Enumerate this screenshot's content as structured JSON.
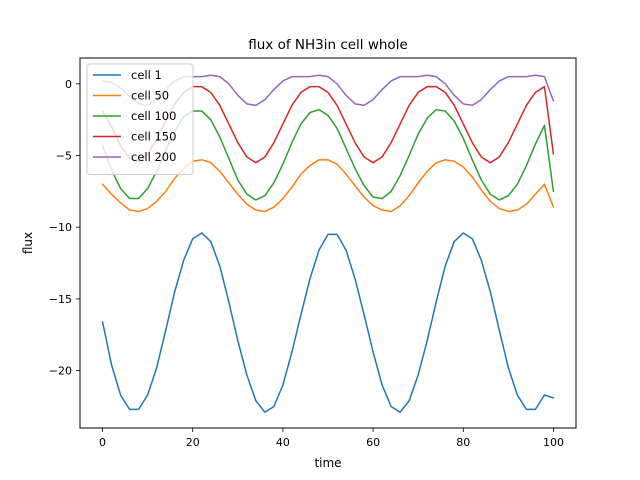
{
  "chart_data": {
    "type": "line",
    "title": "flux of NH3in cell whole",
    "xlabel": "time",
    "ylabel": "flux",
    "xlim": [
      -5,
      105
    ],
    "ylim": [
      -24,
      1.8
    ],
    "xticks": [
      0,
      20,
      40,
      60,
      80,
      100
    ],
    "yticks": [
      0,
      -5,
      -10,
      -15,
      -20
    ],
    "ytick_labels": [
      "0",
      "−5",
      "−10",
      "−15",
      "−20"
    ],
    "grid": false,
    "legend_position": "top-left",
    "x": [
      0,
      2,
      4,
      6,
      8,
      10,
      12,
      14,
      16,
      18,
      20,
      22,
      24,
      26,
      28,
      30,
      32,
      34,
      36,
      38,
      40,
      42,
      44,
      46,
      48,
      50,
      52,
      54,
      56,
      58,
      60,
      62,
      64,
      66,
      68,
      70,
      72,
      74,
      76,
      78,
      80,
      82,
      84,
      86,
      88,
      90,
      92,
      94,
      96,
      98,
      100
    ],
    "series": [
      {
        "name": "cell 1",
        "color": "#1f77b4",
        "values": [
          -16.6,
          -19.6,
          -21.7,
          -22.7,
          -22.7,
          -21.7,
          -19.8,
          -17.2,
          -14.5,
          -12.3,
          -10.8,
          -10.4,
          -11.0,
          -12.7,
          -15.2,
          -17.9,
          -20.3,
          -22.1,
          -22.9,
          -22.5,
          -21.0,
          -18.7,
          -16.1,
          -13.6,
          -11.6,
          -10.5,
          -10.5,
          -11.6,
          -13.6,
          -16.1,
          -18.7,
          -21.0,
          -22.5,
          -22.9,
          -22.1,
          -20.3,
          -17.9,
          -15.2,
          -12.7,
          -11.0,
          -10.4,
          -10.8,
          -12.3,
          -14.5,
          -17.2,
          -19.8,
          -21.7,
          -22.7,
          -22.7,
          -21.7,
          -21.9
        ]
      },
      {
        "name": "cell 50",
        "color": "#ff7f0e",
        "values": [
          -7.0,
          -7.7,
          -8.3,
          -8.8,
          -8.9,
          -8.7,
          -8.2,
          -7.5,
          -6.6,
          -5.9,
          -5.4,
          -5.3,
          -5.5,
          -6.1,
          -6.9,
          -7.7,
          -8.4,
          -8.8,
          -8.9,
          -8.6,
          -8.0,
          -7.2,
          -6.3,
          -5.7,
          -5.3,
          -5.3,
          -5.6,
          -6.3,
          -7.1,
          -7.9,
          -8.5,
          -8.8,
          -8.9,
          -8.5,
          -7.8,
          -6.9,
          -6.1,
          -5.5,
          -5.3,
          -5.4,
          -5.8,
          -6.5,
          -7.4,
          -8.2,
          -8.7,
          -8.9,
          -8.8,
          -8.4,
          -7.7,
          -7.0,
          -8.6
        ]
      },
      {
        "name": "cell 100",
        "color": "#2ca02c",
        "values": [
          -4.3,
          -6.0,
          -7.3,
          -8.0,
          -8.0,
          -7.3,
          -6.1,
          -4.6,
          -3.3,
          -2.3,
          -1.9,
          -1.9,
          -2.5,
          -3.7,
          -5.2,
          -6.7,
          -7.7,
          -8.1,
          -7.8,
          -6.9,
          -5.6,
          -4.1,
          -2.8,
          -2.0,
          -1.8,
          -2.2,
          -3.1,
          -4.5,
          -5.9,
          -7.1,
          -7.9,
          -8.0,
          -7.5,
          -6.4,
          -5.0,
          -3.5,
          -2.4,
          -1.8,
          -1.9,
          -2.6,
          -3.8,
          -5.3,
          -6.7,
          -7.7,
          -8.1,
          -7.8,
          -7.0,
          -5.7,
          -4.2,
          -2.9,
          -7.5
        ]
      },
      {
        "name": "cell 150",
        "color": "#d62728",
        "values": [
          -1.9,
          -3.0,
          -4.3,
          -5.2,
          -5.4,
          -4.9,
          -3.9,
          -2.6,
          -1.4,
          -0.6,
          -0.2,
          -0.2,
          -0.6,
          -1.5,
          -2.8,
          -4.1,
          -5.1,
          -5.5,
          -5.1,
          -4.1,
          -2.8,
          -1.5,
          -0.6,
          -0.2,
          -0.2,
          -0.6,
          -1.5,
          -2.8,
          -4.1,
          -5.1,
          -5.5,
          -5.1,
          -4.1,
          -2.8,
          -1.5,
          -0.6,
          -0.2,
          -0.2,
          -0.6,
          -1.5,
          -2.8,
          -4.1,
          -5.1,
          -5.5,
          -5.1,
          -4.1,
          -2.8,
          -1.5,
          -0.6,
          -0.2,
          -4.9
        ]
      },
      {
        "name": "cell 200",
        "color": "#9467bd",
        "values": [
          0.2,
          0.1,
          -0.3,
          -0.9,
          -1.4,
          -1.5,
          -1.1,
          -0.4,
          0.2,
          0.5,
          0.5,
          0.5,
          0.6,
          0.5,
          0.0,
          -0.8,
          -1.4,
          -1.5,
          -1.1,
          -0.4,
          0.2,
          0.5,
          0.5,
          0.5,
          0.6,
          0.5,
          0.0,
          -0.8,
          -1.4,
          -1.5,
          -1.1,
          -0.4,
          0.2,
          0.5,
          0.5,
          0.5,
          0.6,
          0.5,
          0.0,
          -0.8,
          -1.4,
          -1.5,
          -1.1,
          -0.4,
          0.2,
          0.5,
          0.5,
          0.5,
          0.6,
          0.5,
          -1.2
        ]
      }
    ]
  }
}
